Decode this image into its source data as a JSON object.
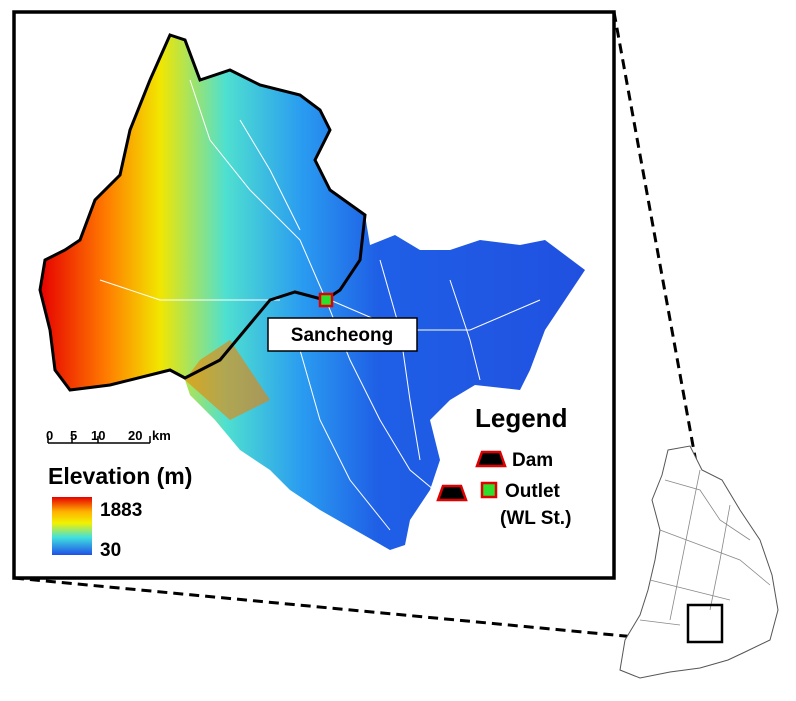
{
  "map": {
    "station_label": "Sancheong",
    "legend": {
      "title": "Legend",
      "items": [
        "Dam",
        "Outlet",
        "(WL St.)"
      ]
    },
    "scale_bar": {
      "ticks": [
        "0",
        "5",
        "10",
        "20"
      ],
      "unit": "km"
    },
    "elevation": {
      "title": "Elevation (m)",
      "max": "1883",
      "min": "30"
    }
  }
}
